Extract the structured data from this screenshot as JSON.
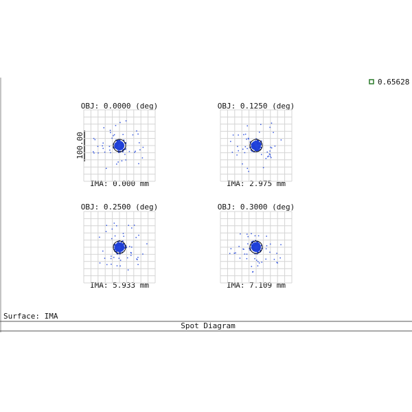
{
  "legend": {
    "wavelength": "0.65628"
  },
  "scale_bar": "100.00",
  "panels": [
    {
      "obj": "OBJ: 0.0000 (deg)",
      "ima": "IMA: 0.000 mm"
    },
    {
      "obj": "OBJ: 0.1250 (deg)",
      "ima": "IMA: 2.975 mm"
    },
    {
      "obj": "OBJ: 0.2500 (deg)",
      "ima": "IMA: 5.933 mm"
    },
    {
      "obj": "OBJ: 0.3000 (deg)",
      "ima": "IMA: 7.109 mm"
    }
  ],
  "surface": "Surface: IMA",
  "footer": "Spot Diagram"
}
